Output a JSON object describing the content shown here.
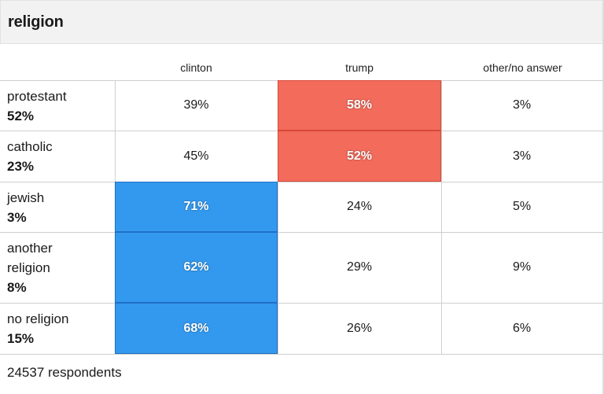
{
  "header": {
    "title": "religion"
  },
  "colors": {
    "clinton": "#3399ee",
    "clinton_border": "#1f6fc4",
    "trump": "#f26b5b",
    "trump_border": "#d9483a"
  },
  "chart_data": {
    "type": "table",
    "title": "religion",
    "columns": [
      "clinton",
      "trump",
      "other/no answer"
    ],
    "rows": [
      {
        "label": "protestant",
        "share": "52%",
        "values": [
          "39%",
          "58%",
          "3%"
        ],
        "winner": "trump"
      },
      {
        "label": "catholic",
        "share": "23%",
        "values": [
          "45%",
          "52%",
          "3%"
        ],
        "winner": "trump"
      },
      {
        "label": "jewish",
        "share": "3%",
        "values": [
          "71%",
          "24%",
          "5%"
        ],
        "winner": "clinton"
      },
      {
        "label": "another religion",
        "share": "8%",
        "values": [
          "62%",
          "29%",
          "9%"
        ],
        "winner": "clinton"
      },
      {
        "label": "no religion",
        "share": "15%",
        "values": [
          "68%",
          "26%",
          "6%"
        ],
        "winner": "clinton"
      }
    ]
  },
  "footer": {
    "respondents": "24537 respondents"
  }
}
